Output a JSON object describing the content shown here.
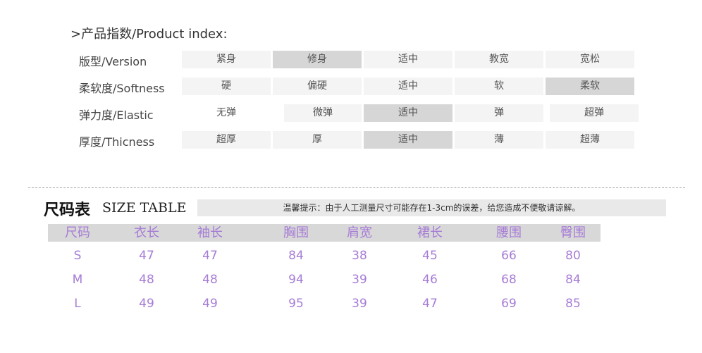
{
  "product_index": {
    "title": ">产品指数/Product index:",
    "rows": [
      {
        "label": "版型/Version",
        "options": [
          "紧身",
          "修身",
          "适中",
          "教宽",
          "宽松"
        ],
        "selected": 1
      },
      {
        "label": "柔软度/Softness",
        "options": [
          "硬",
          "偏硬",
          "适中",
          "软",
          "柔软"
        ],
        "selected": 4
      },
      {
        "label": "弹力度/Elastic",
        "options": [
          "无弹",
          "微弹",
          "适中",
          "弹",
          "超弹"
        ],
        "selected": 2
      },
      {
        "label": "厚度/Thicness",
        "options": [
          "超厚",
          "厚",
          "适中",
          "薄",
          "超薄"
        ],
        "selected": 2
      }
    ]
  },
  "size_table": {
    "title_cn": "尺码表",
    "title_en": "SIZE TABLE",
    "notice": "温馨提示：由于人工测量尺寸可能存在1-3cm的误差，给您造成不便敬请谅解。",
    "headers": [
      "尺码",
      "衣长",
      "袖长",
      "胸围",
      "肩宽",
      "裙长",
      "腰围",
      "臀围"
    ],
    "rows": [
      [
        "S",
        "47",
        "47",
        "84",
        "38",
        "45",
        "66",
        "80"
      ],
      [
        "M",
        "48",
        "48",
        "94",
        "39",
        "46",
        "68",
        "84"
      ],
      [
        "L",
        "49",
        "49",
        "95",
        "39",
        "47",
        "69",
        "85"
      ]
    ],
    "text_color": "#a67cd6"
  }
}
